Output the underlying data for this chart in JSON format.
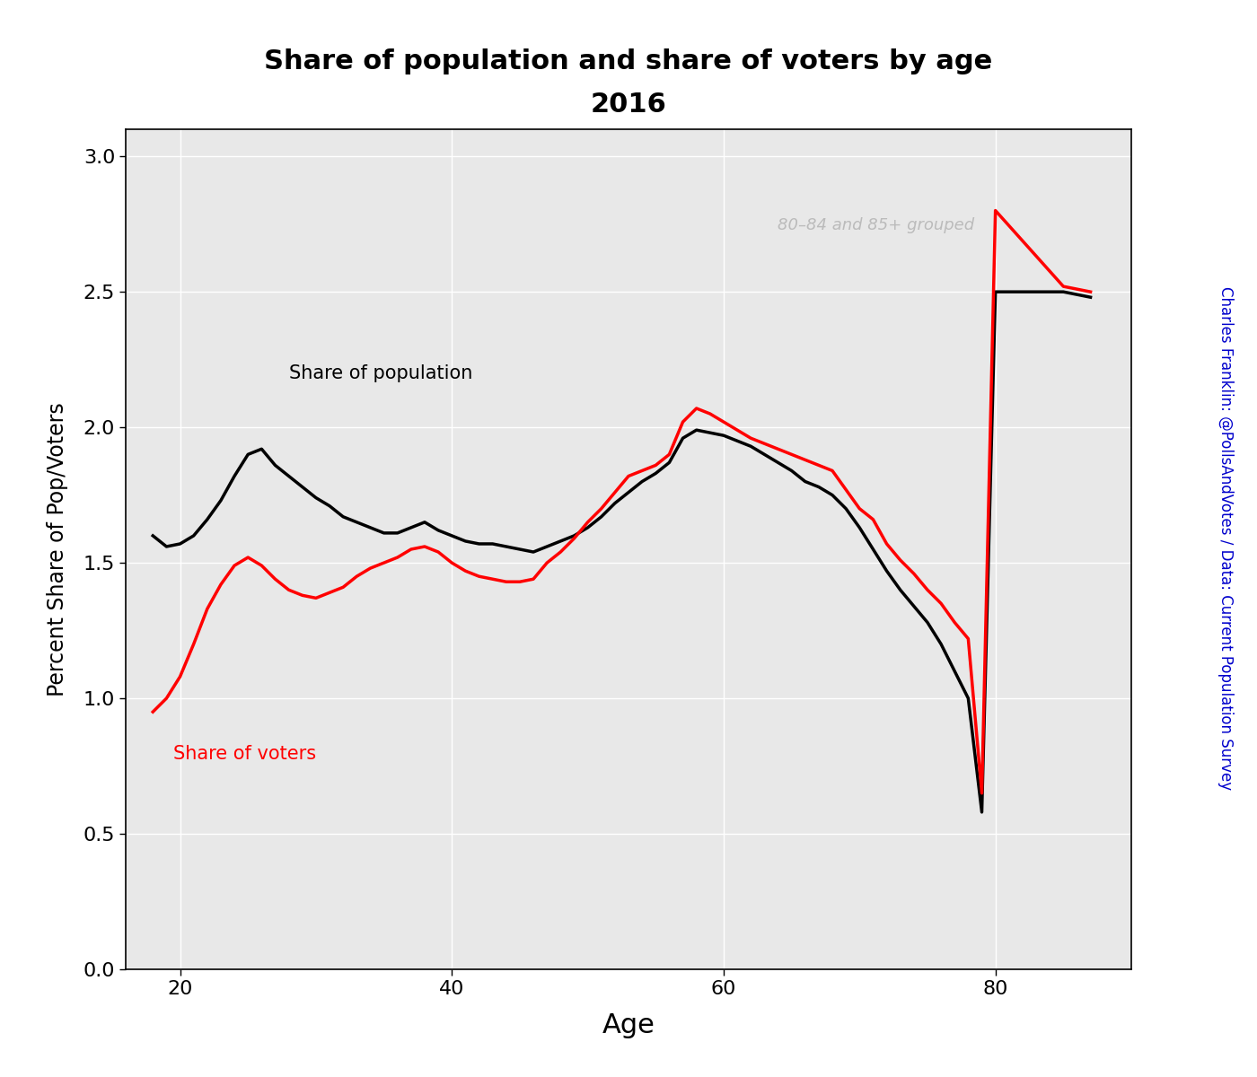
{
  "title_line1": "Share of population and share of voters by age",
  "title_line2": "2016",
  "xlabel": "Age",
  "ylabel": "Percent Share of Pop/Voters",
  "xlim": [
    16,
    90
  ],
  "ylim": [
    0.0,
    3.1
  ],
  "yticks": [
    0.0,
    0.5,
    1.0,
    1.5,
    2.0,
    2.5,
    3.0
  ],
  "xticks": [
    20,
    40,
    60,
    80
  ],
  "pop_color": "#000000",
  "voter_color": "#ff0000",
  "pop_label": "Share of population",
  "voter_label": "Share of voters",
  "annotation_text": "80–84 and 85+ grouped",
  "annotation_color": "#bbbbbb",
  "credit_text": "Charles Franklin: @PollsAndVotes / Data: Current Population Survey",
  "credit_color": "#0000cc",
  "background_color": "#e8e8e8",
  "grid_color": "#ffffff",
  "line_width": 2.5,
  "ages": [
    18,
    19,
    20,
    21,
    22,
    23,
    24,
    25,
    26,
    27,
    28,
    29,
    30,
    31,
    32,
    33,
    34,
    35,
    36,
    37,
    38,
    39,
    40,
    41,
    42,
    43,
    44,
    45,
    46,
    47,
    48,
    49,
    50,
    51,
    52,
    53,
    54,
    55,
    56,
    57,
    58,
    59,
    60,
    61,
    62,
    63,
    64,
    65,
    66,
    67,
    68,
    69,
    70,
    71,
    72,
    73,
    74,
    75,
    76,
    77,
    78,
    79,
    80,
    85,
    87
  ],
  "pop_values": [
    1.6,
    1.56,
    1.57,
    1.6,
    1.66,
    1.73,
    1.82,
    1.9,
    1.92,
    1.86,
    1.82,
    1.78,
    1.74,
    1.71,
    1.67,
    1.65,
    1.63,
    1.61,
    1.61,
    1.63,
    1.65,
    1.62,
    1.6,
    1.58,
    1.57,
    1.57,
    1.56,
    1.55,
    1.54,
    1.56,
    1.58,
    1.6,
    1.63,
    1.67,
    1.72,
    1.76,
    1.8,
    1.83,
    1.87,
    1.96,
    1.99,
    1.98,
    1.97,
    1.95,
    1.93,
    1.9,
    1.87,
    1.84,
    1.8,
    1.78,
    1.75,
    1.7,
    1.63,
    1.55,
    1.47,
    1.4,
    1.34,
    1.28,
    1.2,
    1.1,
    1.0,
    0.58,
    2.5,
    2.5,
    2.48
  ],
  "voter_values": [
    0.95,
    1.0,
    1.08,
    1.2,
    1.33,
    1.42,
    1.49,
    1.52,
    1.49,
    1.44,
    1.4,
    1.38,
    1.37,
    1.39,
    1.41,
    1.45,
    1.48,
    1.5,
    1.52,
    1.55,
    1.56,
    1.54,
    1.5,
    1.47,
    1.45,
    1.44,
    1.43,
    1.43,
    1.44,
    1.5,
    1.54,
    1.59,
    1.65,
    1.7,
    1.76,
    1.82,
    1.84,
    1.86,
    1.9,
    2.02,
    2.07,
    2.05,
    2.02,
    1.99,
    1.96,
    1.94,
    1.92,
    1.9,
    1.88,
    1.86,
    1.84,
    1.77,
    1.7,
    1.66,
    1.57,
    1.51,
    1.46,
    1.4,
    1.35,
    1.28,
    1.22,
    0.65,
    2.8,
    2.52,
    2.5
  ]
}
